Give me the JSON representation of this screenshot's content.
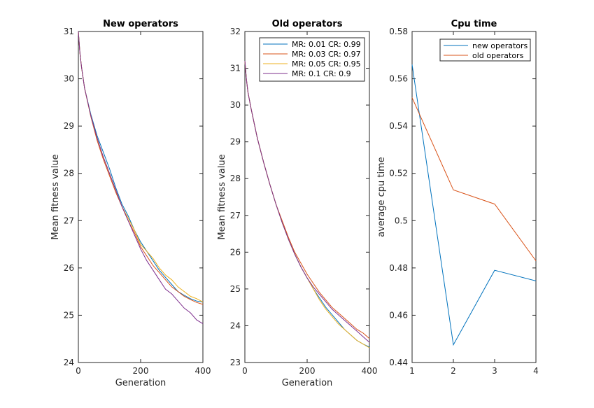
{
  "colors": {
    "s1": "#0072BD",
    "s2": "#D95319",
    "s3": "#EDB120",
    "s4": "#7E2F8E",
    "axis": "#262626",
    "background": "#ffffff"
  },
  "chart_data": [
    {
      "type": "line",
      "title": "New operators",
      "xlabel": "Generation",
      "ylabel": "Mean fitness value",
      "xlim": [
        0,
        400
      ],
      "ylim": [
        24,
        31
      ],
      "xticks": [
        0,
        200,
        400
      ],
      "yticks": [
        24,
        25,
        26,
        27,
        28,
        29,
        30,
        31
      ],
      "x": [
        0,
        5,
        10,
        20,
        40,
        60,
        80,
        100,
        120,
        140,
        160,
        180,
        200,
        220,
        240,
        260,
        280,
        300,
        320,
        340,
        360,
        380,
        400
      ],
      "series": [
        {
          "values": [
            31.0,
            30.55,
            30.25,
            29.8,
            29.25,
            28.8,
            28.45,
            28.1,
            27.7,
            27.35,
            27.1,
            26.8,
            26.55,
            26.35,
            26.15,
            25.95,
            25.8,
            25.65,
            25.5,
            25.42,
            25.35,
            25.3,
            25.28
          ]
        },
        {
          "values": [
            31.0,
            30.55,
            30.25,
            29.8,
            29.2,
            28.7,
            28.3,
            27.95,
            27.6,
            27.3,
            27.0,
            26.75,
            26.45,
            26.25,
            26.05,
            25.9,
            25.75,
            25.6,
            25.5,
            25.4,
            25.33,
            25.27,
            25.23
          ]
        },
        {
          "values": [
            31.0,
            30.55,
            30.25,
            29.8,
            29.22,
            28.75,
            28.35,
            28.0,
            27.65,
            27.3,
            27.05,
            26.8,
            26.5,
            26.35,
            26.2,
            26.0,
            25.85,
            25.75,
            25.6,
            25.5,
            25.4,
            25.35,
            25.28
          ]
        },
        {
          "values": [
            31.0,
            30.55,
            30.25,
            29.8,
            29.22,
            28.75,
            28.35,
            28.0,
            27.65,
            27.3,
            27.0,
            26.7,
            26.4,
            26.15,
            25.95,
            25.75,
            25.55,
            25.45,
            25.3,
            25.15,
            25.05,
            24.9,
            24.82
          ]
        }
      ]
    },
    {
      "type": "line",
      "title": "Old operators",
      "xlabel": "Generation",
      "ylabel": "Mean fitness value",
      "xlim": [
        0,
        400
      ],
      "ylim": [
        23,
        32
      ],
      "xticks": [
        0,
        200,
        400
      ],
      "yticks": [
        23,
        24,
        25,
        26,
        27,
        28,
        29,
        30,
        31,
        32
      ],
      "legend": "top-right",
      "x": [
        0,
        5,
        10,
        20,
        40,
        60,
        80,
        100,
        120,
        140,
        160,
        180,
        200,
        220,
        240,
        260,
        280,
        300,
        320,
        340,
        360,
        380,
        400
      ],
      "series": [
        {
          "name": "MR: 0.01 CR: 0.99",
          "values": [
            31.2,
            30.7,
            30.35,
            29.9,
            29.1,
            28.45,
            27.85,
            27.3,
            26.8,
            26.35,
            25.95,
            25.6,
            25.3,
            25.0,
            24.75,
            24.5,
            24.3,
            24.1,
            23.9,
            23.75,
            23.6,
            23.5,
            23.42
          ]
        },
        {
          "name": "MR: 0.03 CR: 0.97",
          "values": [
            31.2,
            30.7,
            30.35,
            29.9,
            29.1,
            28.45,
            27.85,
            27.3,
            26.85,
            26.4,
            26.0,
            25.7,
            25.4,
            25.15,
            24.9,
            24.7,
            24.5,
            24.35,
            24.2,
            24.05,
            23.9,
            23.8,
            23.65
          ]
        },
        {
          "name": "MR: 0.05 CR: 0.95",
          "values": [
            31.2,
            30.7,
            30.35,
            29.9,
            29.1,
            28.45,
            27.85,
            27.3,
            26.8,
            26.35,
            25.95,
            25.6,
            25.3,
            25.0,
            24.7,
            24.45,
            24.25,
            24.05,
            23.9,
            23.75,
            23.6,
            23.5,
            23.4
          ]
        },
        {
          "name": "MR: 0.1 CR: 0.9",
          "values": [
            31.2,
            30.7,
            30.35,
            29.9,
            29.1,
            28.45,
            27.85,
            27.3,
            26.8,
            26.35,
            25.95,
            25.6,
            25.3,
            25.05,
            24.85,
            24.65,
            24.45,
            24.3,
            24.15,
            24.0,
            23.85,
            23.7,
            23.55
          ]
        }
      ]
    },
    {
      "type": "line",
      "title": "Cpu time",
      "xlabel": "",
      "ylabel": "average cpu time",
      "xlim": [
        1,
        4
      ],
      "ylim": [
        0.44,
        0.58
      ],
      "xticks": [
        1,
        2,
        3,
        4
      ],
      "yticks": [
        0.44,
        0.46,
        0.48,
        0.5,
        0.52,
        0.54,
        0.56,
        0.58
      ],
      "legend": "top-right",
      "x": [
        1,
        2,
        3,
        4
      ],
      "series": [
        {
          "name": "new operators",
          "values": [
            0.566,
            0.4475,
            0.479,
            0.4745
          ]
        },
        {
          "name": "old operators",
          "values": [
            0.552,
            0.513,
            0.507,
            0.483
          ]
        }
      ]
    }
  ]
}
